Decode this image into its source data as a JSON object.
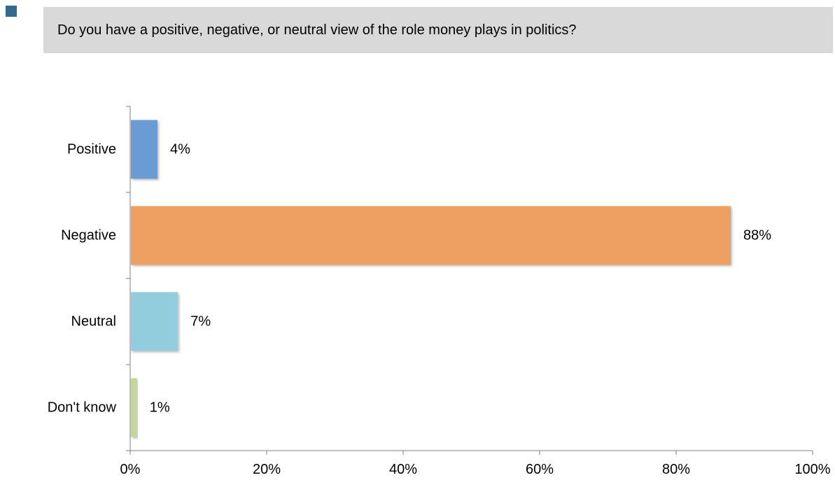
{
  "question": "Do you have a positive, negative, or neutral view of the role money plays in politics?",
  "colors": {
    "corner_square": "#336b8e",
    "banner": "#d9d9d9",
    "axis": "#7f7f7f"
  },
  "chart_data": {
    "type": "bar",
    "orientation": "horizontal",
    "title": "",
    "xlabel": "",
    "ylabel": "",
    "categories": [
      "Positive",
      "Negative",
      "Neutral",
      "Don't know"
    ],
    "values": [
      4,
      88,
      7,
      1
    ],
    "value_labels": [
      "4%",
      "88%",
      "7%",
      "1%"
    ],
    "colors": [
      "#6b9bd5",
      "#eda062",
      "#92cddd",
      "#c3d69b"
    ],
    "xlim": [
      0,
      100
    ],
    "xticks": [
      0,
      20,
      40,
      60,
      80,
      100
    ],
    "xtick_labels": [
      "0%",
      "20%",
      "40%",
      "60%",
      "80%",
      "100%"
    ],
    "grid": false,
    "legend": "none"
  }
}
